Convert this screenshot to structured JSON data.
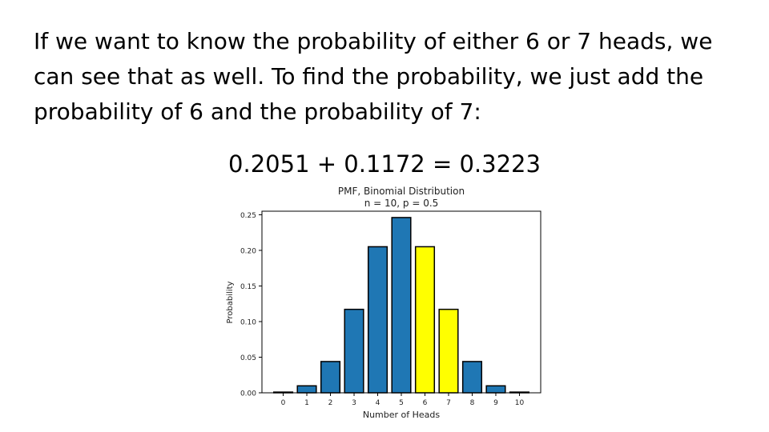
{
  "slide": {
    "paragraph": "If we want to know the probability of either 6 or 7 heads, we can see that as well. To find the probability, we just add the probability of 6 and the probability of 7:",
    "equation": "0.2051 + 0.1172 = 0.3223"
  },
  "chart_data": {
    "type": "bar",
    "title": "PMF, Binomial Distribution",
    "subtitle": "n = 10, p = 0.5",
    "xlabel": "Number of Heads",
    "ylabel": "Probability",
    "categories": [
      "0",
      "1",
      "2",
      "3",
      "4",
      "5",
      "6",
      "7",
      "8",
      "9",
      "10"
    ],
    "values": [
      0.001,
      0.0098,
      0.0439,
      0.1172,
      0.2051,
      0.2461,
      0.2051,
      0.1172,
      0.0439,
      0.0098,
      0.001
    ],
    "ylim": [
      0,
      0.255
    ],
    "yticks": [
      0.0,
      0.05,
      0.1,
      0.15,
      0.2,
      0.25
    ],
    "ytick_labels": [
      "0.00",
      "0.05",
      "0.10",
      "0.15",
      "0.20",
      "0.25"
    ],
    "highlighted_categories": [
      "6",
      "7"
    ],
    "colors": {
      "bar": "#1f77b4",
      "highlight": "#ffff00",
      "edge": "#000000"
    },
    "grid": false,
    "legend": "none"
  }
}
